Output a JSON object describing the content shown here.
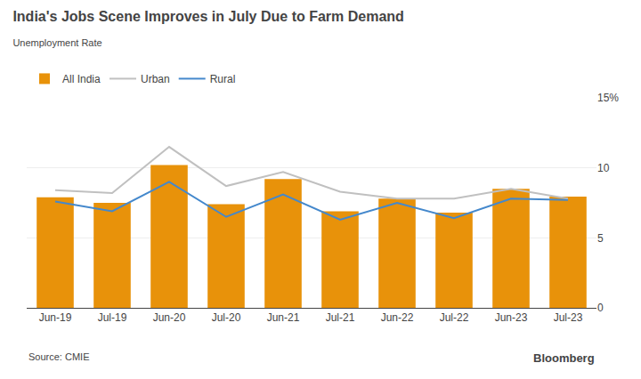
{
  "chart_data": {
    "type": "bar",
    "title": "India's Jobs Scene Improves in July Due to Farm Demand",
    "subtitle": "Unemployment Rate",
    "annotations": [
      "Source: CMIE",
      "Bloomberg"
    ],
    "categories": [
      "Jun-19",
      "Jul-19",
      "Jun-20",
      "Jul-20",
      "Jun-21",
      "Jul-21",
      "Jun-22",
      "Jul-22",
      "Jun-23",
      "Jul-23"
    ],
    "series": [
      {
        "name": "All India",
        "type": "bar",
        "color": "#E8920A",
        "values": [
          7.9,
          7.5,
          10.2,
          7.4,
          9.2,
          6.9,
          7.8,
          6.8,
          8.5,
          7.95
        ]
      },
      {
        "name": "Urban",
        "type": "line",
        "color": "#c0c0c0",
        "values": [
          8.4,
          8.2,
          11.5,
          8.7,
          9.7,
          8.3,
          7.8,
          7.8,
          8.5,
          7.8
        ]
      },
      {
        "name": "Rural",
        "type": "line",
        "color": "#4488cc",
        "values": [
          7.6,
          6.9,
          9.0,
          6.5,
          8.1,
          6.3,
          7.5,
          6.4,
          7.8,
          7.7
        ]
      }
    ],
    "ylim": [
      0,
      15
    ],
    "yticks": [
      0,
      5,
      10,
      {
        "value": 15,
        "label": "15%"
      }
    ],
    "grid": true,
    "legend": "upper left"
  }
}
